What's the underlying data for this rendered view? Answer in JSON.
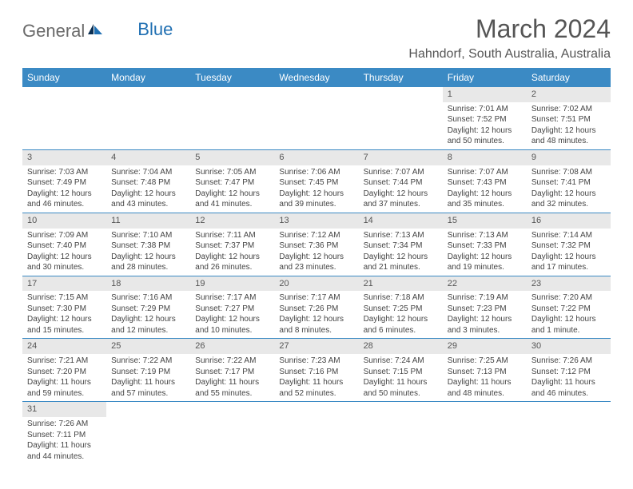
{
  "brand": {
    "part1": "General",
    "part2": "Blue"
  },
  "title": "March 2024",
  "location": "Hahndorf, South Australia, Australia",
  "colors": {
    "header_bg": "#3b8ac4",
    "header_text": "#ffffff",
    "daynum_bg": "#e8e8e8",
    "rule": "#3b8ac4",
    "text": "#444444",
    "brand_grey": "#6a6a6a",
    "brand_blue": "#1f6fb2"
  },
  "weekdays": [
    "Sunday",
    "Monday",
    "Tuesday",
    "Wednesday",
    "Thursday",
    "Friday",
    "Saturday"
  ],
  "weeks": [
    [
      null,
      null,
      null,
      null,
      null,
      {
        "n": "1",
        "sr": "Sunrise: 7:01 AM",
        "ss": "Sunset: 7:52 PM",
        "d1": "Daylight: 12 hours",
        "d2": "and 50 minutes."
      },
      {
        "n": "2",
        "sr": "Sunrise: 7:02 AM",
        "ss": "Sunset: 7:51 PM",
        "d1": "Daylight: 12 hours",
        "d2": "and 48 minutes."
      }
    ],
    [
      {
        "n": "3",
        "sr": "Sunrise: 7:03 AM",
        "ss": "Sunset: 7:49 PM",
        "d1": "Daylight: 12 hours",
        "d2": "and 46 minutes."
      },
      {
        "n": "4",
        "sr": "Sunrise: 7:04 AM",
        "ss": "Sunset: 7:48 PM",
        "d1": "Daylight: 12 hours",
        "d2": "and 43 minutes."
      },
      {
        "n": "5",
        "sr": "Sunrise: 7:05 AM",
        "ss": "Sunset: 7:47 PM",
        "d1": "Daylight: 12 hours",
        "d2": "and 41 minutes."
      },
      {
        "n": "6",
        "sr": "Sunrise: 7:06 AM",
        "ss": "Sunset: 7:45 PM",
        "d1": "Daylight: 12 hours",
        "d2": "and 39 minutes."
      },
      {
        "n": "7",
        "sr": "Sunrise: 7:07 AM",
        "ss": "Sunset: 7:44 PM",
        "d1": "Daylight: 12 hours",
        "d2": "and 37 minutes."
      },
      {
        "n": "8",
        "sr": "Sunrise: 7:07 AM",
        "ss": "Sunset: 7:43 PM",
        "d1": "Daylight: 12 hours",
        "d2": "and 35 minutes."
      },
      {
        "n": "9",
        "sr": "Sunrise: 7:08 AM",
        "ss": "Sunset: 7:41 PM",
        "d1": "Daylight: 12 hours",
        "d2": "and 32 minutes."
      }
    ],
    [
      {
        "n": "10",
        "sr": "Sunrise: 7:09 AM",
        "ss": "Sunset: 7:40 PM",
        "d1": "Daylight: 12 hours",
        "d2": "and 30 minutes."
      },
      {
        "n": "11",
        "sr": "Sunrise: 7:10 AM",
        "ss": "Sunset: 7:38 PM",
        "d1": "Daylight: 12 hours",
        "d2": "and 28 minutes."
      },
      {
        "n": "12",
        "sr": "Sunrise: 7:11 AM",
        "ss": "Sunset: 7:37 PM",
        "d1": "Daylight: 12 hours",
        "d2": "and 26 minutes."
      },
      {
        "n": "13",
        "sr": "Sunrise: 7:12 AM",
        "ss": "Sunset: 7:36 PM",
        "d1": "Daylight: 12 hours",
        "d2": "and 23 minutes."
      },
      {
        "n": "14",
        "sr": "Sunrise: 7:13 AM",
        "ss": "Sunset: 7:34 PM",
        "d1": "Daylight: 12 hours",
        "d2": "and 21 minutes."
      },
      {
        "n": "15",
        "sr": "Sunrise: 7:13 AM",
        "ss": "Sunset: 7:33 PM",
        "d1": "Daylight: 12 hours",
        "d2": "and 19 minutes."
      },
      {
        "n": "16",
        "sr": "Sunrise: 7:14 AM",
        "ss": "Sunset: 7:32 PM",
        "d1": "Daylight: 12 hours",
        "d2": "and 17 minutes."
      }
    ],
    [
      {
        "n": "17",
        "sr": "Sunrise: 7:15 AM",
        "ss": "Sunset: 7:30 PM",
        "d1": "Daylight: 12 hours",
        "d2": "and 15 minutes."
      },
      {
        "n": "18",
        "sr": "Sunrise: 7:16 AM",
        "ss": "Sunset: 7:29 PM",
        "d1": "Daylight: 12 hours",
        "d2": "and 12 minutes."
      },
      {
        "n": "19",
        "sr": "Sunrise: 7:17 AM",
        "ss": "Sunset: 7:27 PM",
        "d1": "Daylight: 12 hours",
        "d2": "and 10 minutes."
      },
      {
        "n": "20",
        "sr": "Sunrise: 7:17 AM",
        "ss": "Sunset: 7:26 PM",
        "d1": "Daylight: 12 hours",
        "d2": "and 8 minutes."
      },
      {
        "n": "21",
        "sr": "Sunrise: 7:18 AM",
        "ss": "Sunset: 7:25 PM",
        "d1": "Daylight: 12 hours",
        "d2": "and 6 minutes."
      },
      {
        "n": "22",
        "sr": "Sunrise: 7:19 AM",
        "ss": "Sunset: 7:23 PM",
        "d1": "Daylight: 12 hours",
        "d2": "and 3 minutes."
      },
      {
        "n": "23",
        "sr": "Sunrise: 7:20 AM",
        "ss": "Sunset: 7:22 PM",
        "d1": "Daylight: 12 hours",
        "d2": "and 1 minute."
      }
    ],
    [
      {
        "n": "24",
        "sr": "Sunrise: 7:21 AM",
        "ss": "Sunset: 7:20 PM",
        "d1": "Daylight: 11 hours",
        "d2": "and 59 minutes."
      },
      {
        "n": "25",
        "sr": "Sunrise: 7:22 AM",
        "ss": "Sunset: 7:19 PM",
        "d1": "Daylight: 11 hours",
        "d2": "and 57 minutes."
      },
      {
        "n": "26",
        "sr": "Sunrise: 7:22 AM",
        "ss": "Sunset: 7:17 PM",
        "d1": "Daylight: 11 hours",
        "d2": "and 55 minutes."
      },
      {
        "n": "27",
        "sr": "Sunrise: 7:23 AM",
        "ss": "Sunset: 7:16 PM",
        "d1": "Daylight: 11 hours",
        "d2": "and 52 minutes."
      },
      {
        "n": "28",
        "sr": "Sunrise: 7:24 AM",
        "ss": "Sunset: 7:15 PM",
        "d1": "Daylight: 11 hours",
        "d2": "and 50 minutes."
      },
      {
        "n": "29",
        "sr": "Sunrise: 7:25 AM",
        "ss": "Sunset: 7:13 PM",
        "d1": "Daylight: 11 hours",
        "d2": "and 48 minutes."
      },
      {
        "n": "30",
        "sr": "Sunrise: 7:26 AM",
        "ss": "Sunset: 7:12 PM",
        "d1": "Daylight: 11 hours",
        "d2": "and 46 minutes."
      }
    ],
    [
      {
        "n": "31",
        "sr": "Sunrise: 7:26 AM",
        "ss": "Sunset: 7:11 PM",
        "d1": "Daylight: 11 hours",
        "d2": "and 44 minutes."
      },
      null,
      null,
      null,
      null,
      null,
      null
    ]
  ]
}
